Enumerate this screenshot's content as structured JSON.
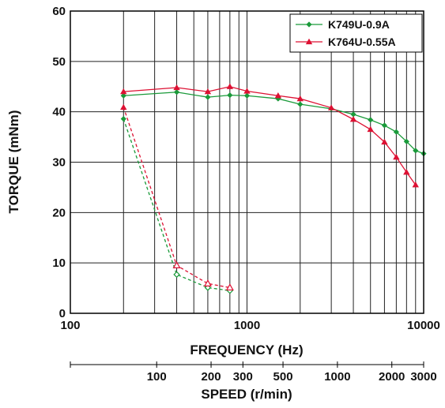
{
  "chart_data": {
    "type": "line",
    "xlabel": "FREQUENCY (Hz)",
    "ylabel": "TORQUE (mNm)",
    "xscale": "log",
    "xlim": [
      100,
      10000
    ],
    "ylim": [
      0,
      60
    ],
    "x_tick_labels": [
      "100",
      "1000",
      "10000"
    ],
    "y_tick_labels": [
      "0",
      "10",
      "20",
      "30",
      "40",
      "50",
      "60"
    ],
    "grid": true,
    "legend_position": "top-right",
    "secondary_axis": {
      "label": "SPEED (r/min)",
      "tick_labels": [
        "100",
        "200",
        "300",
        "500",
        "1000",
        "2000",
        "3000"
      ],
      "tick_values": [
        100,
        200,
        300,
        500,
        1000,
        2000,
        3000
      ]
    },
    "series": [
      {
        "name": "K749U-0.9A",
        "color": "#1a9a3a",
        "marker": "diamond",
        "solid": {
          "x": [
            200,
            400,
            600,
            800,
            1000,
            1500,
            2000,
            3000,
            4000,
            5000,
            6000,
            7000,
            8000,
            9000,
            10000
          ],
          "y": [
            43.2,
            43.9,
            42.9,
            43.3,
            43.2,
            42.6,
            41.5,
            40.6,
            39.5,
            38.4,
            37.3,
            36.0,
            34.1,
            32.3,
            31.7
          ]
        },
        "dashed": {
          "x": [
            200,
            400,
            600,
            800
          ],
          "y": [
            38.6,
            7.7,
            5.1,
            4.5
          ]
        }
      },
      {
        "name": "K764U-0.55A",
        "color": "#dd1133",
        "marker": "triangle",
        "solid": {
          "x": [
            200,
            400,
            600,
            800,
            1000,
            1500,
            2000,
            3000,
            4000,
            5000,
            6000,
            7000,
            8000,
            9000
          ],
          "y": [
            44.0,
            44.8,
            44.0,
            45.0,
            44.1,
            43.2,
            42.6,
            40.8,
            38.5,
            36.5,
            34.0,
            31.0,
            28.0,
            25.5
          ]
        },
        "dashed": {
          "x": [
            200,
            400,
            600,
            800
          ],
          "y": [
            40.9,
            9.5,
            5.9,
            5.1
          ]
        }
      }
    ]
  }
}
